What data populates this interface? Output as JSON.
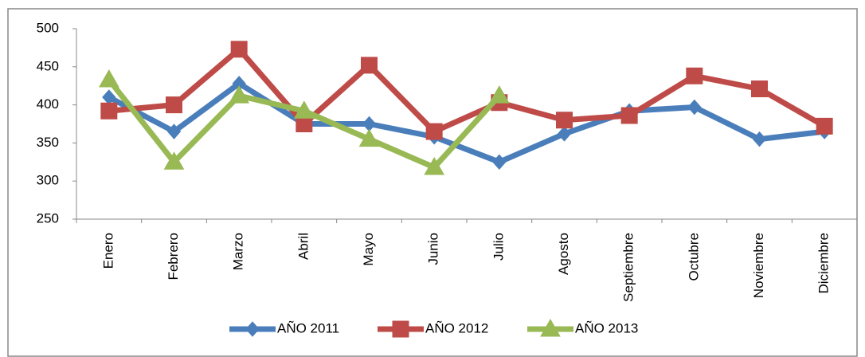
{
  "chart_data": {
    "type": "line",
    "categories": [
      "Enero",
      "Febrero",
      "Marzo",
      "Abril",
      "Mayo",
      "Junio",
      "Julio",
      "Agosto",
      "Septiembre",
      "Octubre",
      "Noviembre",
      "Diciembre"
    ],
    "series": [
      {
        "name": "AÑO 2011",
        "color": "#4a7ebb",
        "marker": "diamond",
        "values": [
          410,
          365,
          428,
          375,
          375,
          358,
          325,
          362,
          392,
          397,
          355,
          365
        ]
      },
      {
        "name": "AÑO 2012",
        "color": "#be4b48",
        "marker": "square",
        "values": [
          392,
          400,
          473,
          375,
          452,
          365,
          403,
          380,
          386,
          438,
          421,
          372
        ]
      },
      {
        "name": "AÑO 2013",
        "color": "#98b954",
        "marker": "triangle",
        "values": [
          433,
          325,
          412,
          392,
          355,
          318,
          412,
          null,
          null,
          null,
          null,
          null
        ]
      }
    ],
    "ylim": [
      250,
      500
    ],
    "yticks": [
      250,
      300,
      350,
      400,
      450,
      500
    ],
    "grid": false,
    "legend": "bottom"
  }
}
